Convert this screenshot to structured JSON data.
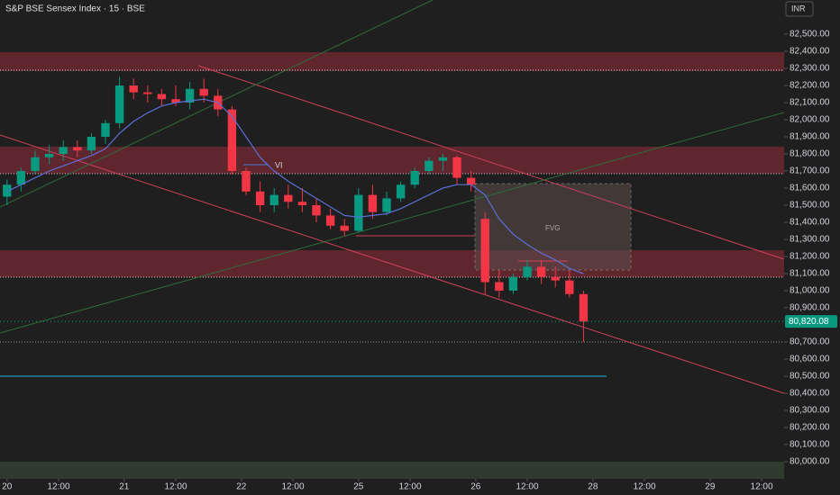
{
  "chart_data": {
    "type": "candlestick",
    "title": "S&P BSE Sensex Index · 15 · BSE",
    "currency": "INR",
    "x": [
      0,
      3,
      6,
      9,
      12,
      15,
      18,
      21,
      24,
      27,
      30,
      33,
      36,
      39,
      42,
      45,
      48,
      51,
      54,
      57,
      60,
      63,
      66,
      69,
      72,
      75,
      78,
      81,
      84,
      87,
      90,
      93,
      96,
      99,
      102,
      105,
      108,
      111,
      114,
      117,
      120,
      123
    ],
    "open": [
      81550,
      81620,
      81700,
      81780,
      81800,
      81840,
      81820,
      81900,
      81980,
      82200,
      82160,
      82150,
      82120,
      82100,
      82180,
      82140,
      82060,
      81700,
      81580,
      81500,
      81560,
      81520,
      81500,
      81440,
      81380,
      81350,
      81560,
      81460,
      81540,
      81620,
      81700,
      81760,
      81780,
      81660,
      81420,
      81050,
      81000,
      81080,
      81140,
      81080,
      81060,
      80980
    ],
    "high": [
      81650,
      81720,
      81820,
      81850,
      81880,
      81880,
      81920,
      82000,
      82250,
      82240,
      82200,
      82180,
      82200,
      82220,
      82240,
      82180,
      82080,
      81720,
      81640,
      81600,
      81620,
      81600,
      81540,
      81480,
      81420,
      81600,
      81620,
      81580,
      81640,
      81720,
      81780,
      81800,
      81790,
      81700,
      81460,
      81120,
      81100,
      81180,
      81180,
      81140,
      81120,
      81000
    ],
    "low": [
      81500,
      81580,
      81680,
      81740,
      81760,
      81780,
      81800,
      81860,
      81950,
      82120,
      82100,
      82080,
      82080,
      82060,
      82100,
      82020,
      81680,
      81560,
      81460,
      81460,
      81480,
      81460,
      81400,
      81360,
      81320,
      81340,
      81420,
      81440,
      81520,
      81600,
      81680,
      81700,
      81620,
      81580,
      80980,
      80960,
      80980,
      81060,
      81040,
      81020,
      80960,
      80700
    ],
    "close": [
      81620,
      81700,
      81780,
      81800,
      81840,
      81820,
      81900,
      81980,
      82200,
      82160,
      82150,
      82120,
      82100,
      82180,
      82140,
      82060,
      81700,
      81580,
      81500,
      81560,
      81520,
      81500,
      81440,
      81380,
      81350,
      81560,
      81460,
      81540,
      81620,
      81700,
      81760,
      81780,
      81660,
      81620,
      81050,
      81000,
      81080,
      81140,
      81080,
      81060,
      80980,
      80820
    ],
    "ma_values": [
      81580,
      81620,
      81660,
      81700,
      81730,
      81760,
      81790,
      81830,
      81920,
      81990,
      82040,
      82080,
      82100,
      82110,
      82120,
      82100,
      82020,
      81900,
      81780,
      81700,
      81640,
      81590,
      81540,
      81490,
      81440,
      81430,
      81440,
      81450,
      81480,
      81520,
      81560,
      81600,
      81620,
      81620,
      81560,
      81420,
      81330,
      81270,
      81220,
      81180,
      81130,
      81100
    ],
    "ma_color": "#5b6fd6",
    "up_color": "#089981",
    "down_color": "#f23645",
    "last_price": {
      "value": 80820.08,
      "label": "80,820.08"
    },
    "xlim": [
      -1.5,
      165.8
    ],
    "xticks": [
      {
        "value": 0,
        "label": "20"
      },
      {
        "value": 11,
        "label": "12:00"
      },
      {
        "value": 25,
        "label": "21"
      },
      {
        "value": 36,
        "label": "12:00"
      },
      {
        "value": 50,
        "label": "22"
      },
      {
        "value": 61,
        "label": "12:00"
      },
      {
        "value": 75,
        "label": "25"
      },
      {
        "value": 86,
        "label": "12:00"
      },
      {
        "value": 100,
        "label": "26"
      },
      {
        "value": 111,
        "label": "12:00"
      },
      {
        "value": 125,
        "label": "28"
      },
      {
        "value": 136,
        "label": "12:00"
      },
      {
        "value": 150,
        "label": "29"
      },
      {
        "value": 161,
        "label": "12:00"
      }
    ],
    "ylim": [
      79900,
      82700
    ],
    "yticks": [
      {
        "value": 80000,
        "label": "80,000.00"
      },
      {
        "value": 80100,
        "label": "80,100.00"
      },
      {
        "value": 80200,
        "label": "80,200.00"
      },
      {
        "value": 80300,
        "label": "80,300.00"
      },
      {
        "value": 80400,
        "label": "80,400.00"
      },
      {
        "value": 80500,
        "label": "80,500.00"
      },
      {
        "value": 80600,
        "label": "80,600.00"
      },
      {
        "value": 80700,
        "label": "80,700.00"
      },
      {
        "value": 80900,
        "label": "80,900.00"
      },
      {
        "value": 81000,
        "label": "81,000.00"
      },
      {
        "value": 81100,
        "label": "81,100.00"
      },
      {
        "value": 81200,
        "label": "81,200.00"
      },
      {
        "value": 81300,
        "label": "81,300.00"
      },
      {
        "value": 81400,
        "label": "81,400.00"
      },
      {
        "value": 81500,
        "label": "81,500.00"
      },
      {
        "value": 81600,
        "label": "81,600.00"
      },
      {
        "value": 81700,
        "label": "81,700.00"
      },
      {
        "value": 81800,
        "label": "81,800.00"
      },
      {
        "value": 81900,
        "label": "81,900.00"
      },
      {
        "value": 82000,
        "label": "82,000.00"
      },
      {
        "value": 82100,
        "label": "82,100.00"
      },
      {
        "value": 82200,
        "label": "82,200.00"
      },
      {
        "value": 82300,
        "label": "82,300.00"
      },
      {
        "value": 82400,
        "label": "82,400.00"
      },
      {
        "value": 82500,
        "label": "82,500.00"
      }
    ],
    "annotations": [
      "VI",
      "FVG"
    ]
  }
}
